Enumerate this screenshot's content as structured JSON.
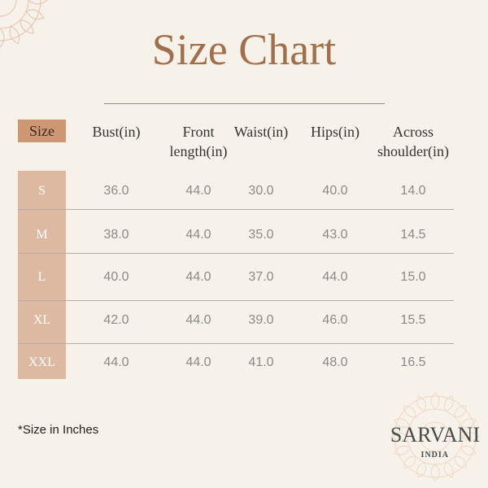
{
  "title": "Size Chart",
  "headers": [
    "Size",
    "Bust(in)",
    "Front length(in)",
    "Waist(in)",
    "Hips(in)",
    "Across shoulder(in)"
  ],
  "header_lines": {
    "front": [
      "Front",
      "length(in)"
    ],
    "across": [
      "Across",
      "shoulder(in)"
    ]
  },
  "rows": [
    {
      "size": "S",
      "bust": "36.0",
      "front": "44.0",
      "waist": "30.0",
      "hips": "40.0",
      "shoulder": "14.0"
    },
    {
      "size": "M",
      "bust": "38.0",
      "front": "44.0",
      "waist": "35.0",
      "hips": "43.0",
      "shoulder": "14.5"
    },
    {
      "size": "L",
      "bust": "40.0",
      "front": "44.0",
      "waist": "37.0",
      "hips": "44.0",
      "shoulder": "15.0"
    },
    {
      "size": "XL",
      "bust": "42.0",
      "front": "44.0",
      "waist": "39.0",
      "hips": "46.0",
      "shoulder": "15.5"
    },
    {
      "size": "XXL",
      "bust": "44.0",
      "front": "44.0",
      "waist": "41.0",
      "hips": "48.0",
      "shoulder": "16.5"
    }
  ],
  "note": "*Size in Inches",
  "logo": {
    "name": "SARVANI",
    "sub": "INDIA"
  },
  "colors": {
    "background": "#f7f2e9",
    "title": "#a0704d",
    "size_header": "#cd9773",
    "size_column": "#deb9a2"
  }
}
